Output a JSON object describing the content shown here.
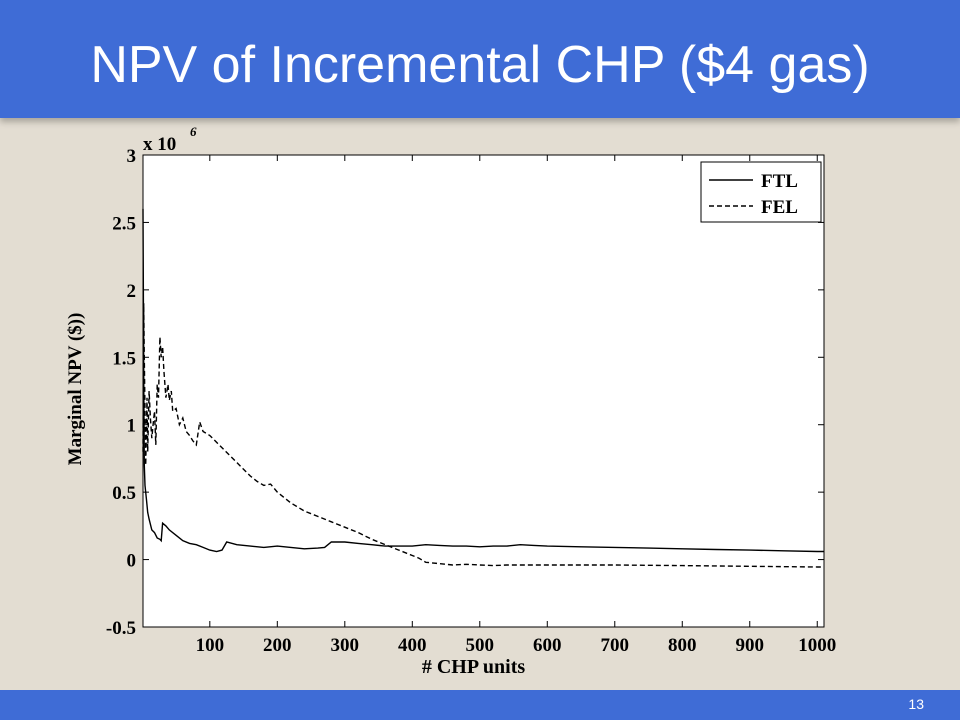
{
  "slide": {
    "title": "NPV of Incremental CHP ($4 gas)",
    "page_number": "13",
    "header_color": "#3f6cd6",
    "background_color": "#e3ddd2"
  },
  "chart_data": {
    "type": "line",
    "xlabel": "# CHP units",
    "ylabel": "Marginal NPV ($))",
    "y_multiplier_label": "x 10",
    "y_multiplier_exponent": "6",
    "xlim": [
      1,
      1010
    ],
    "ylim": [
      -0.5,
      3
    ],
    "x_ticks": [
      100,
      200,
      300,
      400,
      500,
      600,
      700,
      800,
      900,
      1000
    ],
    "y_ticks": [
      -0.5,
      0,
      0.5,
      1,
      1.5,
      2,
      2.5,
      3
    ],
    "y_tick_labels": [
      "-0.5",
      "0",
      "0.5",
      "1",
      "1.5",
      "2",
      "2.5",
      "3"
    ],
    "grid": false,
    "legend": "top-right",
    "series": [
      {
        "name": "FTL",
        "style": "solid",
        "x": [
          1,
          2,
          3,
          4,
          6,
          8,
          10,
          14,
          18,
          22,
          26,
          28,
          30,
          35,
          40,
          50,
          60,
          70,
          80,
          90,
          100,
          110,
          118,
          125,
          140,
          160,
          180,
          200,
          220,
          240,
          260,
          270,
          280,
          300,
          320,
          340,
          360,
          380,
          400,
          420,
          440,
          460,
          480,
          500,
          520,
          540,
          560,
          580,
          600,
          650,
          700,
          750,
          800,
          850,
          900,
          950,
          1000,
          1010
        ],
        "y": [
          2.6,
          1.4,
          0.7,
          0.55,
          0.45,
          0.35,
          0.3,
          0.22,
          0.2,
          0.16,
          0.15,
          0.14,
          0.27,
          0.25,
          0.22,
          0.18,
          0.14,
          0.12,
          0.11,
          0.09,
          0.07,
          0.06,
          0.07,
          0.13,
          0.11,
          0.1,
          0.09,
          0.1,
          0.09,
          0.08,
          0.085,
          0.09,
          0.13,
          0.13,
          0.12,
          0.11,
          0.1,
          0.1,
          0.1,
          0.11,
          0.105,
          0.1,
          0.1,
          0.095,
          0.1,
          0.1,
          0.11,
          0.105,
          0.1,
          0.095,
          0.09,
          0.085,
          0.08,
          0.075,
          0.07,
          0.065,
          0.06,
          0.06
        ]
      },
      {
        "name": "FEL",
        "style": "dashed",
        "x": [
          1,
          2,
          3,
          4,
          5,
          6,
          7,
          8,
          10,
          12,
          14,
          16,
          18,
          20,
          22,
          24,
          26,
          28,
          30,
          32,
          35,
          38,
          40,
          43,
          45,
          50,
          55,
          60,
          65,
          70,
          75,
          80,
          85,
          90,
          100,
          120,
          140,
          160,
          170,
          180,
          190,
          200,
          220,
          240,
          260,
          280,
          300,
          320,
          340,
          360,
          380,
          400,
          410,
          420,
          440,
          460,
          480,
          500,
          520,
          540,
          560,
          600,
          700,
          800,
          900,
          1000,
          1010
        ],
        "y": [
          0.8,
          1.9,
          1.5,
          1.1,
          0.7,
          0.95,
          1.2,
          0.8,
          1.25,
          1.05,
          0.9,
          1.0,
          1.1,
          0.85,
          1.3,
          1.2,
          1.65,
          1.5,
          1.58,
          1.4,
          1.2,
          1.3,
          1.18,
          1.25,
          1.1,
          1.12,
          1.0,
          1.05,
          0.95,
          0.92,
          0.88,
          0.85,
          1.02,
          0.95,
          0.92,
          0.82,
          0.72,
          0.62,
          0.58,
          0.55,
          0.56,
          0.5,
          0.42,
          0.36,
          0.32,
          0.28,
          0.24,
          0.2,
          0.15,
          0.11,
          0.07,
          0.03,
          0.01,
          -0.02,
          -0.03,
          -0.04,
          -0.035,
          -0.04,
          -0.045,
          -0.04,
          -0.04,
          -0.04,
          -0.04,
          -0.045,
          -0.05,
          -0.055,
          -0.055
        ]
      }
    ]
  }
}
